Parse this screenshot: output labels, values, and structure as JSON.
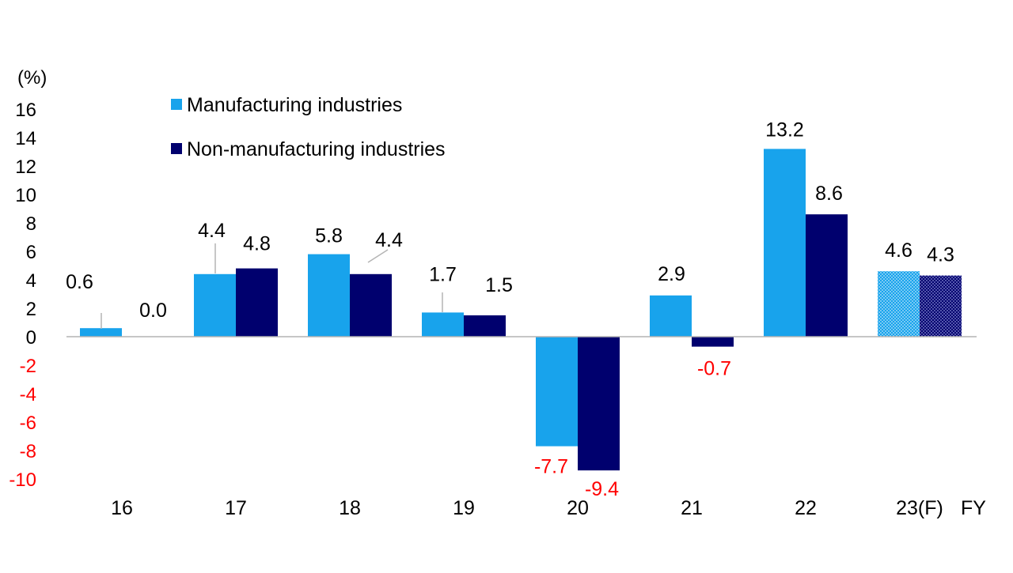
{
  "chart_data": {
    "type": "bar",
    "unit_label": "(%)",
    "x_axis_suffix": "FY",
    "categories": [
      "16",
      "17",
      "18",
      "19",
      "20",
      "21",
      "22",
      "23(F)"
    ],
    "forecast_index": 7,
    "series": [
      {
        "name": "Manufacturing industries",
        "color": "#18a3ec",
        "values": [
          0.6,
          4.4,
          5.8,
          1.7,
          -7.7,
          2.9,
          13.2,
          4.6
        ],
        "labels": [
          "0.6",
          "4.4",
          "5.8",
          "1.7",
          "-7.7",
          "2.9",
          "13.2",
          "4.6"
        ]
      },
      {
        "name": "Non-manufacturing industries",
        "color": "#00006e",
        "values": [
          0.0,
          4.8,
          4.4,
          1.5,
          -9.4,
          -0.7,
          8.6,
          4.3
        ],
        "labels": [
          "0.0",
          "4.8",
          "4.4",
          "1.5",
          "-9.4",
          "-0.7",
          "8.6",
          "4.3"
        ]
      }
    ],
    "ylim": [
      -10,
      16
    ],
    "yticks": [
      16,
      14,
      12,
      10,
      8,
      6,
      4,
      2,
      0,
      -2,
      -4,
      -6,
      -8,
      -10
    ],
    "ytick_labels": [
      "16",
      "14",
      "12",
      "10",
      "8",
      "6",
      "4",
      "2",
      "0",
      "-2",
      "-4",
      "-6",
      "-8",
      "-10"
    ],
    "negative_color": "#ff0000",
    "text_color": "#000000",
    "axis_color": "#b4b4b4",
    "leader_lines_for": [
      "16-m",
      "17-m",
      "18-n",
      "19-m"
    ],
    "legend_position": "top-left"
  }
}
